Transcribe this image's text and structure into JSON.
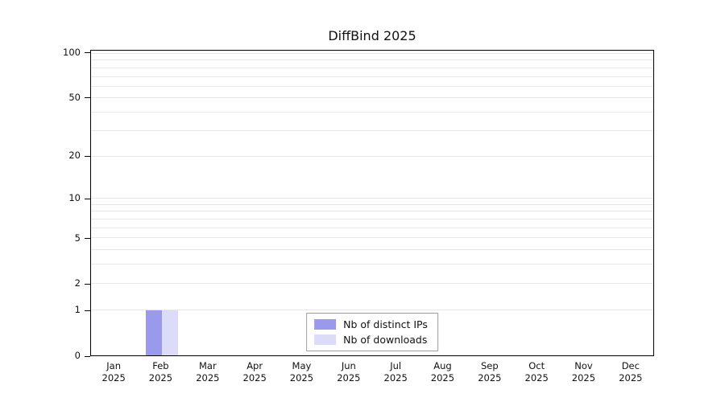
{
  "chart_data": {
    "type": "bar",
    "title": "DiffBind 2025",
    "year": "2025",
    "categories": [
      "Jan",
      "Feb",
      "Mar",
      "Apr",
      "May",
      "Jun",
      "Jul",
      "Aug",
      "Sep",
      "Oct",
      "Nov",
      "Dec"
    ],
    "series": [
      {
        "name": "Nb of distinct IPs",
        "color": "#9a99ec",
        "values": [
          0,
          1,
          0,
          0,
          0,
          0,
          0,
          0,
          0,
          0,
          0,
          0
        ]
      },
      {
        "name": "Nb of downloads",
        "color": "#dcdcf8",
        "values": [
          0,
          1,
          0,
          0,
          0,
          0,
          0,
          0,
          0,
          0,
          0,
          0
        ]
      }
    ],
    "y_scale": "log1p",
    "y_ticks": [
      0,
      1,
      2,
      5,
      10,
      20,
      50,
      100
    ],
    "y_max": 105,
    "minor_gridlines": [
      1,
      2,
      3,
      4,
      5,
      6,
      7,
      8,
      9,
      10,
      20,
      30,
      40,
      50,
      60,
      70,
      80,
      90,
      100
    ],
    "ylim": [
      0,
      105
    ],
    "grid": true,
    "legend_position": "bottom-center",
    "axis_color": "#000000",
    "gridline_color": "#e7e7e7"
  }
}
